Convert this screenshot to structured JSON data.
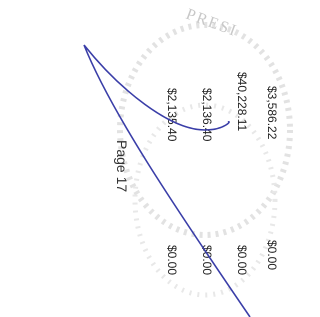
{
  "stamp": "PRESI",
  "amounts": [
    "$3,586.22",
    "$40,228.11",
    "$2,136.40",
    "$2,135.40"
  ],
  "page_label": "Page 17",
  "zero_amounts": [
    "$0.00",
    "$0.00",
    "$0.00",
    "$0.00"
  ]
}
